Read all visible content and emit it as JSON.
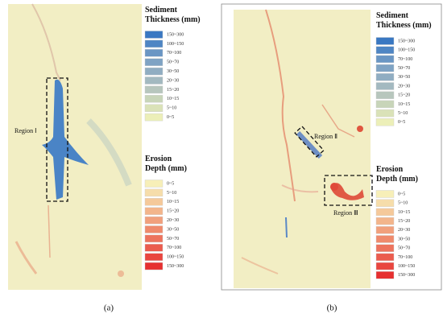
{
  "panels": [
    {
      "label": "(a)",
      "regions": [
        {
          "label": "Region Ⅰ"
        }
      ],
      "legend": {
        "sediment": {
          "title": "Sediment Thickness (mm)",
          "items": [
            "150~300",
            "100~150",
            "70~100",
            "50~70",
            "30~50",
            "20~30",
            "15~20",
            "10~15",
            "5~10",
            "0~5"
          ],
          "colors": [
            "#3a78c2",
            "#4f86c4",
            "#6a96c4",
            "#7fa3c4",
            "#90adc2",
            "#a3b9c0",
            "#b7c6bd",
            "#c8d5b9",
            "#dae2b8",
            "#ecefb8"
          ]
        },
        "erosion": {
          "title": "Erosion Depth (mm)",
          "items": [
            "0~5",
            "5~10",
            "10~15",
            "15~20",
            "20~30",
            "30~50",
            "50~70",
            "70~100",
            "100~150",
            "150~300"
          ],
          "colors": [
            "#f7efb8",
            "#f6ddaa",
            "#f5c99a",
            "#f3b58b",
            "#f1a07c",
            "#ef8a6c",
            "#ed735d",
            "#eb5c4e",
            "#e9463f",
            "#e63030"
          ]
        }
      }
    },
    {
      "label": "(b)",
      "regions": [
        {
          "label": "Region Ⅱ"
        },
        {
          "label": "Region Ⅲ"
        }
      ],
      "legend": {
        "sediment": {
          "title": "Sediment Thickness (mm)",
          "items": [
            "150~300",
            "100~150",
            "70~100",
            "50~70",
            "30~50",
            "20~30",
            "15~20",
            "10~15",
            "5~10",
            "0~5"
          ],
          "colors": [
            "#3a78c2",
            "#4f86c4",
            "#6a96c4",
            "#7fa3c4",
            "#90adc2",
            "#a3b9c0",
            "#b7c6bd",
            "#c8d5b9",
            "#dae2b8",
            "#ecefb8"
          ]
        },
        "erosion": {
          "title": "Erosion Depth (mm)",
          "items": [
            "0~5",
            "5~10",
            "10~15",
            "15~20",
            "20~30",
            "30~50",
            "50~70",
            "70~100",
            "100~150",
            "150~300"
          ],
          "colors": [
            "#f7efb8",
            "#f6ddaa",
            "#f5c99a",
            "#f3b58b",
            "#f1a07c",
            "#ef8a6c",
            "#ed735d",
            "#eb5c4e",
            "#e9463f",
            "#e63030"
          ]
        }
      }
    }
  ]
}
